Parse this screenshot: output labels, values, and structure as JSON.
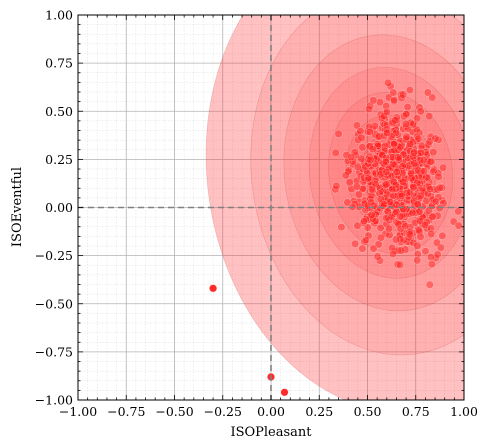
{
  "chart_data": {
    "type": "scatter",
    "title": "",
    "xlabel": "ISOPleasant",
    "ylabel": "ISOEventful",
    "xlim": [
      -1.0,
      1.0
    ],
    "ylim": [
      -1.0,
      1.0
    ],
    "xticks": [
      "−1.00",
      "−0.75",
      "−0.50",
      "−0.25",
      "0.00",
      "0.25",
      "0.50",
      "0.75",
      "1.00"
    ],
    "yticks": [
      "1.00",
      "0.75",
      "0.50",
      "0.25",
      "0.00",
      "−0.25",
      "−0.50",
      "−0.75",
      "−1.00"
    ],
    "xtick_values": [
      -1.0,
      -0.75,
      -0.5,
      -0.25,
      0.0,
      0.25,
      0.5,
      0.75,
      1.0
    ],
    "ytick_values": [
      1.0,
      0.75,
      0.5,
      0.25,
      0.0,
      -0.25,
      -0.5,
      -0.75,
      -1.0
    ],
    "grid": true,
    "minor_grid": true,
    "reference_lines": {
      "x": 0.0,
      "y": 0.0,
      "style": "dashed",
      "color": "#808080"
    },
    "point_color": "#ff2020",
    "density_fill_color": "#ff2020",
    "density": {
      "center": [
        0.62,
        0.18
      ],
      "levels": [
        {
          "rx": 0.95,
          "ry": 1.25
        },
        {
          "rx": 0.72,
          "ry": 0.95
        },
        {
          "rx": 0.55,
          "ry": 0.72
        },
        {
          "rx": 0.42,
          "ry": 0.55
        },
        {
          "rx": 0.32,
          "ry": 0.42
        },
        {
          "rx": 0.23,
          "ry": 0.3
        },
        {
          "rx": 0.15,
          "ry": 0.2
        }
      ]
    },
    "highlighted_points": [
      {
        "x": -0.3,
        "y": -0.42
      },
      {
        "x": 0.0,
        "y": -0.88
      },
      {
        "x": 0.07,
        "y": -0.96
      }
    ],
    "cluster": {
      "n_points": 700,
      "mean": [
        0.65,
        0.15
      ],
      "std": [
        0.2,
        0.3
      ]
    }
  }
}
